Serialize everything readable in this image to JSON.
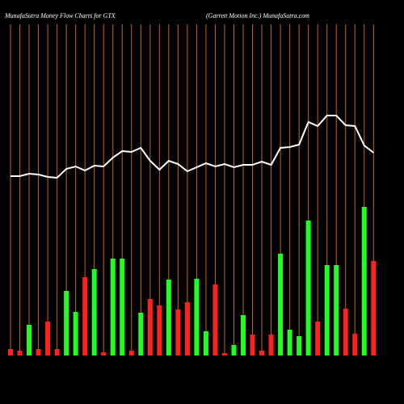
{
  "chart_data": {
    "type": "bar",
    "title": "MunafaSutra  Money Flow  Charts for GTX",
    "subtitle": "(Garrett Motion  Inc.) MunafaSutra.com",
    "categories": [
      null,
      null,
      null,
      null,
      null,
      null,
      null,
      null,
      null,
      null,
      null,
      null,
      null,
      null,
      null,
      null,
      null,
      null,
      null,
      null,
      null,
      null,
      null,
      null,
      null,
      null,
      null,
      null,
      null,
      null,
      null,
      null,
      null,
      null,
      null,
      null,
      null,
      null,
      null,
      null
    ],
    "values": [
      8,
      6,
      38,
      8,
      42,
      8,
      80,
      54,
      97,
      107,
      4,
      120,
      120,
      6,
      53,
      70,
      62,
      94,
      57,
      66,
      95,
      30,
      88,
      3,
      13,
      50,
      26,
      6,
      26,
      126,
      32,
      24,
      167,
      42,
      112,
      112,
      58,
      27,
      184,
      117
    ],
    "colors": [
      "#ff2020",
      "#ff2020",
      "#20ff20",
      "#ff2020",
      "#ff2020",
      "#ff2020",
      "#20ff20",
      "#20ff20",
      "#ff2020",
      "#20ff20",
      "#ff2020",
      "#20ff20",
      "#20ff20",
      "#ff2020",
      "#20ff20",
      "#ff2020",
      "#ff2020",
      "#20ff20",
      "#ff2020",
      "#ff2020",
      "#20ff20",
      "#20ff20",
      "#ff2020",
      "#ff2020",
      "#20ff20",
      "#20ff20",
      "#ff2020",
      "#ff2020",
      "#ff2020",
      "#20ff20",
      "#20ff20",
      "#20ff20",
      "#20ff20",
      "#ff2020",
      "#20ff20",
      "#20ff20",
      "#ff2020",
      "#ff2020",
      "#20ff20",
      "#ff2020"
    ],
    "line_values": [
      222,
      222,
      225,
      224,
      221,
      220,
      231,
      234,
      229,
      235,
      234,
      245,
      253,
      252,
      257,
      241,
      230,
      241,
      237,
      228,
      233,
      238,
      234,
      237,
      233,
      236,
      236,
      240,
      236,
      257,
      258,
      261,
      289,
      284,
      297,
      297,
      285,
      284,
      260,
      251
    ],
    "line_color": "#ffffff",
    "grid_color": "#c06a10",
    "ylim": [
      0,
      410
    ]
  }
}
